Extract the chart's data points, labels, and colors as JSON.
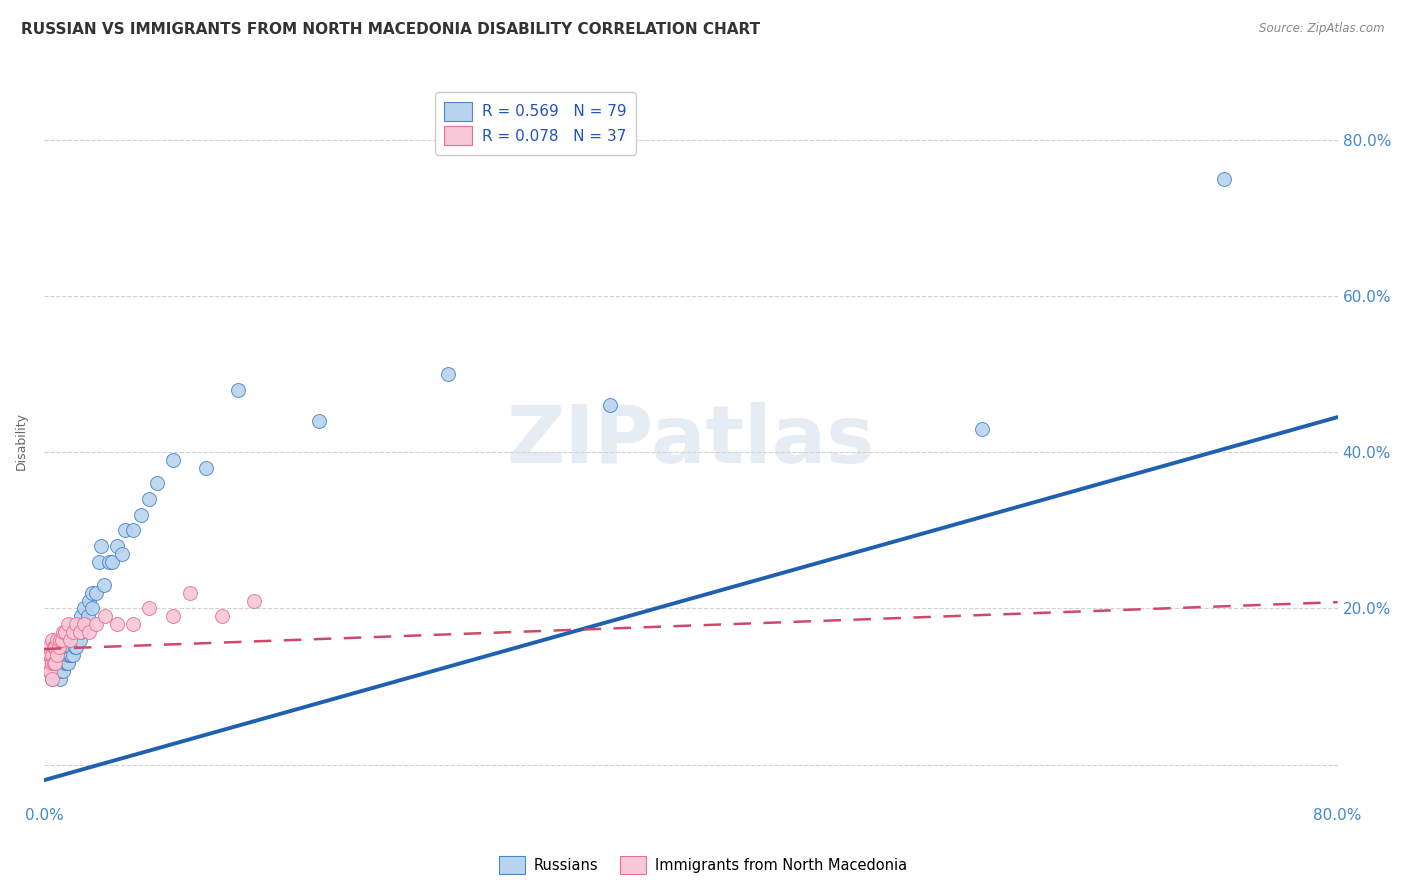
{
  "title": "RUSSIAN VS IMMIGRANTS FROM NORTH MACEDONIA DISABILITY CORRELATION CHART",
  "source": "Source: ZipAtlas.com",
  "ylabel": "Disability",
  "xlim": [
    0.0,
    0.8
  ],
  "ylim": [
    -0.05,
    0.88
  ],
  "russian_R": 0.569,
  "russian_N": 79,
  "macedonia_R": 0.078,
  "macedonia_N": 37,
  "russian_color": "#b8d4ee",
  "russian_edge_color": "#4a86c8",
  "russian_line_color": "#2060b0",
  "macedonia_color": "#f8c8d8",
  "macedonia_edge_color": "#e87090",
  "macedonia_line_color": "#d04868",
  "background_color": "#ffffff",
  "grid_color": "#cccccc",
  "watermark": "ZIPatlas",
  "title_fontsize": 11,
  "russians_x": [
    0.003,
    0.003,
    0.003,
    0.004,
    0.004,
    0.005,
    0.005,
    0.005,
    0.005,
    0.006,
    0.006,
    0.007,
    0.007,
    0.007,
    0.008,
    0.008,
    0.008,
    0.009,
    0.009,
    0.01,
    0.01,
    0.01,
    0.01,
    0.01,
    0.01,
    0.01,
    0.012,
    0.012,
    0.013,
    0.013,
    0.013,
    0.014,
    0.014,
    0.014,
    0.015,
    0.015,
    0.016,
    0.016,
    0.017,
    0.017,
    0.018,
    0.018,
    0.019,
    0.019,
    0.02,
    0.02,
    0.02,
    0.021,
    0.022,
    0.022,
    0.023,
    0.023,
    0.025,
    0.026,
    0.027,
    0.028,
    0.03,
    0.03,
    0.032,
    0.034,
    0.035,
    0.037,
    0.04,
    0.042,
    0.045,
    0.048,
    0.05,
    0.055,
    0.06,
    0.065,
    0.07,
    0.08,
    0.1,
    0.12,
    0.17,
    0.25,
    0.35,
    0.58,
    0.73
  ],
  "russians_y": [
    0.13,
    0.14,
    0.14,
    0.12,
    0.14,
    0.11,
    0.13,
    0.13,
    0.14,
    0.12,
    0.13,
    0.12,
    0.13,
    0.14,
    0.12,
    0.13,
    0.14,
    0.12,
    0.14,
    0.11,
    0.12,
    0.13,
    0.13,
    0.14,
    0.14,
    0.15,
    0.12,
    0.14,
    0.13,
    0.14,
    0.15,
    0.13,
    0.14,
    0.15,
    0.13,
    0.14,
    0.14,
    0.15,
    0.14,
    0.15,
    0.14,
    0.16,
    0.15,
    0.17,
    0.15,
    0.16,
    0.17,
    0.17,
    0.16,
    0.18,
    0.17,
    0.19,
    0.2,
    0.18,
    0.19,
    0.21,
    0.2,
    0.22,
    0.22,
    0.26,
    0.28,
    0.23,
    0.26,
    0.26,
    0.28,
    0.27,
    0.3,
    0.3,
    0.32,
    0.34,
    0.36,
    0.39,
    0.38,
    0.48,
    0.44,
    0.5,
    0.46,
    0.43,
    0.75
  ],
  "macedonia_x": [
    0.003,
    0.003,
    0.003,
    0.003,
    0.004,
    0.004,
    0.005,
    0.005,
    0.005,
    0.005,
    0.006,
    0.006,
    0.007,
    0.007,
    0.008,
    0.008,
    0.009,
    0.01,
    0.011,
    0.012,
    0.013,
    0.015,
    0.016,
    0.018,
    0.02,
    0.022,
    0.025,
    0.028,
    0.032,
    0.038,
    0.045,
    0.055,
    0.065,
    0.08,
    0.09,
    0.11,
    0.13
  ],
  "macedonia_y": [
    0.12,
    0.13,
    0.14,
    0.15,
    0.12,
    0.14,
    0.11,
    0.13,
    0.14,
    0.16,
    0.13,
    0.15,
    0.13,
    0.15,
    0.14,
    0.16,
    0.15,
    0.16,
    0.16,
    0.17,
    0.17,
    0.18,
    0.16,
    0.17,
    0.18,
    0.17,
    0.18,
    0.17,
    0.18,
    0.19,
    0.18,
    0.18,
    0.2,
    0.19,
    0.22,
    0.19,
    0.21
  ],
  "blue_line_x0": 0.0,
  "blue_line_y0": -0.02,
  "blue_line_x1": 0.8,
  "blue_line_y1": 0.445,
  "pink_line_x0": 0.0,
  "pink_line_y0": 0.148,
  "pink_line_x1": 0.8,
  "pink_line_y1": 0.208
}
